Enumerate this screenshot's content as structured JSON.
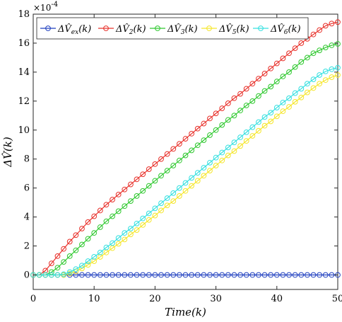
{
  "chart_data": {
    "type": "line",
    "xlabel": "Time(k)",
    "ylabel": "ΔV̂(k)",
    "exponent_label": "×10",
    "exponent_power": "-4",
    "xlim": [
      0,
      50
    ],
    "ylim": [
      -1,
      18
    ],
    "y_scale_factor": 0.0001,
    "x_ticks": [
      0,
      10,
      20,
      30,
      40,
      50
    ],
    "y_ticks": [
      0,
      2,
      4,
      6,
      8,
      10,
      12,
      14,
      16,
      18
    ],
    "grid": false,
    "legend_position": "top",
    "markers": "open-circle",
    "x": [
      0,
      1,
      2,
      3,
      4,
      5,
      6,
      7,
      8,
      9,
      10,
      11,
      12,
      13,
      14,
      15,
      16,
      17,
      18,
      19,
      20,
      21,
      22,
      23,
      24,
      25,
      26,
      27,
      28,
      29,
      30,
      31,
      32,
      33,
      34,
      35,
      36,
      37,
      38,
      39,
      40,
      41,
      42,
      43,
      44,
      45,
      46,
      47,
      48,
      49,
      50
    ],
    "series": [
      {
        "name": "ΔV̂ex(k)",
        "base": "ΔV̂",
        "sub": "ex",
        "color": "#1f3fbf",
        "values": [
          0,
          0,
          0,
          0,
          0,
          0,
          0,
          0,
          0,
          0,
          0,
          0,
          0,
          0,
          0,
          0,
          0,
          0,
          0,
          0,
          0,
          0,
          0,
          0,
          0,
          0,
          0,
          0,
          0,
          0,
          0,
          0,
          0,
          0,
          0,
          0,
          0,
          0,
          0,
          0,
          0,
          0,
          0,
          0,
          0,
          0,
          0,
          0,
          0,
          0,
          0
        ]
      },
      {
        "name": "ΔV̂2(k)",
        "base": "ΔV̂",
        "sub": "2",
        "color": "#e8302a",
        "values": [
          0,
          0,
          0.3,
          0.8,
          1.3,
          1.8,
          2.3,
          2.75,
          3.2,
          3.65,
          4.05,
          4.45,
          4.85,
          5.2,
          5.55,
          5.9,
          6.25,
          6.6,
          6.95,
          7.3,
          7.65,
          8.0,
          8.35,
          8.7,
          9.05,
          9.4,
          9.75,
          10.1,
          10.45,
          10.8,
          11.15,
          11.5,
          11.85,
          12.2,
          12.5,
          12.85,
          13.2,
          13.55,
          13.9,
          14.25,
          14.6,
          14.95,
          15.3,
          15.65,
          16.0,
          16.3,
          16.6,
          16.9,
          17.2,
          17.35,
          17.45
        ]
      },
      {
        "name": "ΔV̂3(k)",
        "base": "ΔV̂",
        "sub": "3",
        "color": "#2ec82e",
        "values": [
          0,
          0,
          0,
          0.2,
          0.5,
          0.9,
          1.3,
          1.7,
          2.1,
          2.5,
          2.9,
          3.3,
          3.7,
          4.05,
          4.4,
          4.75,
          5.1,
          5.45,
          5.8,
          6.15,
          6.5,
          6.85,
          7.2,
          7.55,
          7.9,
          8.25,
          8.6,
          8.95,
          9.3,
          9.65,
          10.0,
          10.35,
          10.7,
          11.0,
          11.35,
          11.7,
          12.0,
          12.35,
          12.7,
          13.0,
          13.35,
          13.7,
          14.0,
          14.35,
          14.7,
          15.0,
          15.3,
          15.5,
          15.7,
          15.85,
          15.95
        ]
      },
      {
        "name": "ΔV̂5(k)",
        "base": "ΔV̂",
        "sub": "5",
        "color": "#f5e62a",
        "values": [
          0,
          0,
          0,
          0,
          0,
          0,
          0.1,
          0.25,
          0.45,
          0.7,
          0.95,
          1.25,
          1.55,
          1.85,
          2.15,
          2.45,
          2.8,
          3.1,
          3.45,
          3.8,
          4.1,
          4.45,
          4.8,
          5.1,
          5.45,
          5.8,
          6.15,
          6.5,
          6.85,
          7.2,
          7.55,
          7.9,
          8.25,
          8.55,
          8.9,
          9.25,
          9.6,
          9.95,
          10.3,
          10.6,
          10.95,
          11.3,
          11.6,
          11.95,
          12.25,
          12.6,
          12.9,
          13.2,
          13.45,
          13.65,
          13.8
        ]
      },
      {
        "name": "ΔV̂6(k)",
        "base": "ΔV̂",
        "sub": "6",
        "color": "#35e0e0",
        "values": [
          0,
          0,
          0,
          0,
          0,
          0.05,
          0.2,
          0.4,
          0.65,
          0.95,
          1.25,
          1.55,
          1.9,
          2.2,
          2.55,
          2.9,
          3.2,
          3.55,
          3.9,
          4.25,
          4.6,
          4.95,
          5.3,
          5.65,
          6.0,
          6.35,
          6.7,
          7.05,
          7.4,
          7.75,
          8.1,
          8.45,
          8.8,
          9.15,
          9.5,
          9.85,
          10.2,
          10.55,
          10.9,
          11.2,
          11.55,
          11.9,
          12.2,
          12.55,
          12.85,
          13.2,
          13.5,
          13.8,
          14.05,
          14.2,
          14.3
        ]
      }
    ]
  }
}
